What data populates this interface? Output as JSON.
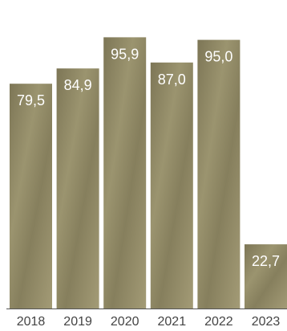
{
  "chart_data": {
    "type": "bar",
    "categories": [
      "2018",
      "2019",
      "2020",
      "2021",
      "2022",
      "2023"
    ],
    "values": [
      79.5,
      84.9,
      95.9,
      87.0,
      95.0,
      22.7
    ],
    "value_labels": [
      "79,5",
      "84,9",
      "95,9",
      "87,0",
      "95,0",
      "22,7"
    ],
    "ylim": [
      0,
      100
    ],
    "grid": false,
    "legend": "none"
  },
  "colors": {
    "bar": "#8b8462",
    "bar_light": "#a8a07c",
    "bar_dark": "#6f6a4c",
    "axis": "#555555",
    "label": "#ffffff",
    "tick": "#444444"
  }
}
